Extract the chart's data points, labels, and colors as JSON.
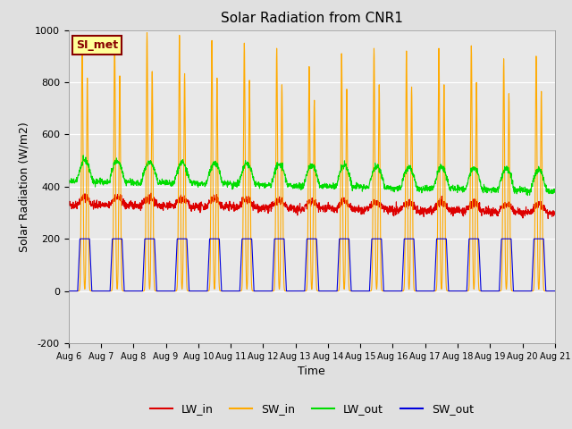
{
  "title": "Solar Radiation from CNR1",
  "xlabel": "Time",
  "ylabel": "Solar Radiation (W/m2)",
  "ylim": [
    -200,
    1000
  ],
  "ytick_values": [
    -200,
    0,
    200,
    400,
    600,
    800,
    1000
  ],
  "xtick_labels": [
    "Aug 6",
    "Aug 7",
    "Aug 8",
    "Aug 9",
    "Aug 10",
    "Aug 11",
    "Aug 12",
    "Aug 13",
    "Aug 14",
    "Aug 15",
    "Aug 16",
    "Aug 17",
    "Aug 18",
    "Aug 19",
    "Aug 20",
    "Aug 21"
  ],
  "legend_entries": [
    "LW_in",
    "SW_in",
    "LW_out",
    "SW_out"
  ],
  "line_colors": [
    "#dd0000",
    "#ffaa00",
    "#00dd00",
    "#0000dd"
  ],
  "bg_color": "#e8e8e8",
  "fig_bg_color": "#e0e0e0",
  "station_label": "SI_met",
  "station_label_bg": "#ffff99",
  "station_label_border": "#880000",
  "n_days": 15,
  "pts_per_day": 144
}
